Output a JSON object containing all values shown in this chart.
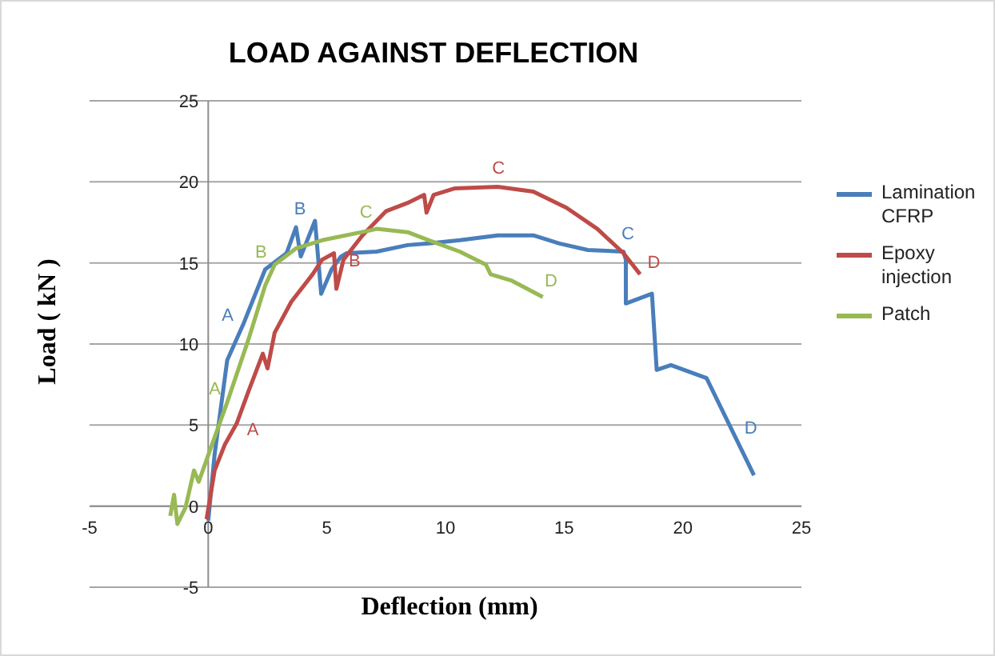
{
  "chart_data": {
    "type": "line",
    "title": "LOAD AGAINST DEFLECTION",
    "xlabel": "Deflection (mm)",
    "ylabel": "Load ( kN )",
    "xlim": [
      -5,
      25
    ],
    "xticks": [
      -5,
      0,
      5,
      10,
      15,
      20,
      25
    ],
    "ylim": [
      -5,
      25
    ],
    "yticks": [
      -5,
      0,
      5,
      10,
      15,
      20,
      25
    ],
    "grid": "y",
    "legend": "right",
    "marker": "none",
    "line_style": "solid",
    "series": [
      {
        "name": "Lamination CFRP",
        "color": "#4a7ebb",
        "x": [
          0,
          0.27,
          0.8,
          1.5,
          2.4,
          3.3,
          3.7,
          3.9,
          4.5,
          4.76,
          5.2,
          5.6,
          5.84,
          7.1,
          8.4,
          9.3,
          10.6,
          12.2,
          13.7,
          14.8,
          16.0,
          17.5,
          17.6,
          17.6,
          18.7,
          18.9,
          19.5,
          21.0,
          23.0
        ],
        "values": [
          -0.9,
          3.2,
          9.0,
          11.3,
          14.6,
          15.6,
          17.2,
          15.4,
          17.6,
          13.1,
          14.6,
          15.4,
          15.6,
          15.7,
          16.1,
          16.2,
          16.4,
          16.7,
          16.7,
          16.2,
          15.8,
          15.7,
          15.2,
          12.5,
          13.1,
          8.4,
          8.7,
          7.9,
          1.9
        ]
      },
      {
        "name": "Epoxy injection",
        "color": "#be4b48",
        "x": [
          -0.07,
          0.27,
          0.7,
          1.2,
          1.7,
          2.3,
          2.5,
          2.8,
          3.5,
          4.4,
          4.8,
          5.3,
          5.4,
          5.7,
          6.5,
          7.5,
          8.4,
          9.1,
          9.2,
          9.5,
          10.4,
          12.2,
          13.7,
          15.1,
          16.4,
          17.5,
          18.2
        ],
        "values": [
          -0.8,
          2.2,
          3.8,
          5.1,
          7.1,
          9.4,
          8.5,
          10.7,
          12.6,
          14.3,
          15.2,
          15.6,
          13.4,
          15.2,
          16.7,
          18.2,
          18.7,
          19.2,
          18.1,
          19.2,
          19.6,
          19.7,
          19.4,
          18.4,
          17.1,
          15.6,
          14.3
        ]
      },
      {
        "name": "Patch",
        "color": "#98b954",
        "x": [
          -1.6,
          -1.44,
          -1.3,
          -0.96,
          -0.6,
          -0.4,
          0.16,
          0.8,
          1.7,
          2.4,
          2.8,
          3.7,
          4.8,
          6.8,
          7.1,
          8.4,
          9.3,
          10.6,
          11.7,
          11.9,
          12.8,
          14.1
        ],
        "values": [
          -0.6,
          0.7,
          -1.1,
          -0.1,
          2.2,
          1.5,
          3.8,
          6.4,
          10.3,
          13.6,
          14.9,
          15.9,
          16.4,
          17.0,
          17.1,
          16.9,
          16.4,
          15.7,
          14.9,
          14.3,
          13.9,
          12.9
        ]
      }
    ],
    "annotations": [
      {
        "text": "A",
        "x": 1.5,
        "y": 11.3
      },
      {
        "text": "B",
        "x": 3.7,
        "y": 17.2
      },
      {
        "text": "C",
        "x": 17.5,
        "y": 15.7
      },
      {
        "text": "D",
        "x": 22.2,
        "y": 4.3
      },
      {
        "text": "A",
        "x": 1.2,
        "y": 5.1
      },
      {
        "text": "B",
        "x": 5.3,
        "y": 15.6
      },
      {
        "text": "C",
        "x": 12.2,
        "y": 19.7
      },
      {
        "text": "D",
        "x": 18.2,
        "y": 14.3
      },
      {
        "text": "A",
        "x": 0.8,
        "y": 6.4
      },
      {
        "text": "B",
        "x": 2.8,
        "y": 14.9
      },
      {
        "text": "C",
        "x": 6.8,
        "y": 17.0
      },
      {
        "text": "D",
        "x": 14.1,
        "y": 12.9
      }
    ]
  }
}
